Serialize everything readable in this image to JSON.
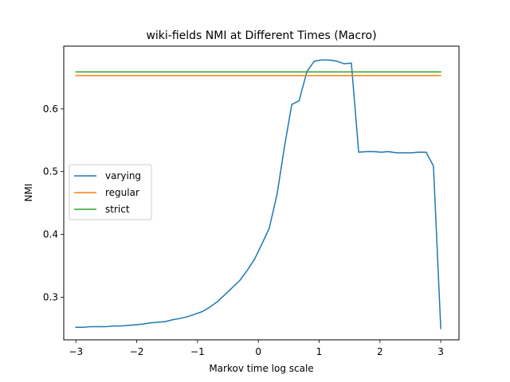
{
  "chart_data": {
    "type": "line",
    "title": "wiki-fields NMI at Different Times (Macro)",
    "xlabel": "Markov time log scale",
    "ylabel": "NMI",
    "xlim": [
      -3.2,
      3.3
    ],
    "ylim": [
      0.232,
      0.7
    ],
    "xticks": [
      -3,
      -2,
      -1,
      0,
      1,
      2,
      3
    ],
    "xtick_labels": [
      "−3",
      "−2",
      "−1",
      "0",
      "1",
      "2",
      "3"
    ],
    "yticks": [
      0.3,
      0.4,
      0.5,
      0.6
    ],
    "ytick_labels": [
      "0.3",
      "0.4",
      "0.5",
      "0.6"
    ],
    "grid": false,
    "legend_position": "center-left",
    "series": [
      {
        "name": "varying",
        "color": "#1f77b4",
        "x": [
          -3.0,
          -2.88,
          -2.76,
          -2.63,
          -2.51,
          -2.39,
          -2.27,
          -2.14,
          -2.02,
          -1.9,
          -1.78,
          -1.65,
          -1.53,
          -1.41,
          -1.29,
          -1.16,
          -1.04,
          -0.92,
          -0.8,
          -0.67,
          -0.55,
          -0.43,
          -0.31,
          -0.18,
          -0.06,
          0.06,
          0.18,
          0.31,
          0.43,
          0.55,
          0.67,
          0.8,
          0.92,
          1.04,
          1.16,
          1.29,
          1.41,
          1.53,
          1.65,
          1.78,
          1.9,
          2.02,
          2.14,
          2.27,
          2.39,
          2.51,
          2.63,
          2.76,
          2.88,
          3.0
        ],
        "values": [
          0.252,
          0.252,
          0.253,
          0.253,
          0.253,
          0.254,
          0.254,
          0.255,
          0.256,
          0.257,
          0.259,
          0.26,
          0.261,
          0.264,
          0.266,
          0.269,
          0.273,
          0.277,
          0.284,
          0.293,
          0.304,
          0.315,
          0.326,
          0.343,
          0.361,
          0.385,
          0.41,
          0.465,
          0.54,
          0.607,
          0.613,
          0.66,
          0.676,
          0.678,
          0.678,
          0.676,
          0.672,
          0.673,
          0.531,
          0.532,
          0.532,
          0.531,
          0.532,
          0.53,
          0.53,
          0.53,
          0.531,
          0.531,
          0.509,
          0.25
        ]
      },
      {
        "name": "regular",
        "color": "#ff7f0e",
        "x": [
          -3.0,
          3.0
        ],
        "values": [
          0.653,
          0.653
        ]
      },
      {
        "name": "strict",
        "color": "#2ca02c",
        "x": [
          -3.0,
          3.0
        ],
        "values": [
          0.659,
          0.659
        ]
      }
    ]
  }
}
